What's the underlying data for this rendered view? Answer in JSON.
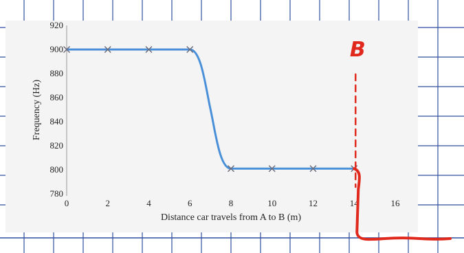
{
  "chart_data": {
    "type": "line",
    "xlabel": "Distance car travels from A to B (m)",
    "ylabel": "Frequency (Hz)",
    "xlim": [
      0,
      16
    ],
    "ylim": [
      780,
      920
    ],
    "x_ticks": [
      0,
      2,
      4,
      6,
      8,
      10,
      12,
      14,
      16
    ],
    "y_ticks": [
      780,
      800,
      820,
      840,
      860,
      880,
      900,
      920
    ],
    "grid": false,
    "series": [
      {
        "color": "#4a90d9",
        "marker": "x",
        "x": [
          0,
          2,
          4,
          6,
          8,
          10,
          12,
          14
        ],
        "y": [
          900,
          900,
          900,
          900,
          801,
          801,
          801,
          801
        ]
      }
    ],
    "annotation": {
      "label": "B",
      "x": 14,
      "color": "#e0291c"
    }
  },
  "colors": {
    "notebook_grid": "#2f4f9e",
    "plot_panel": "#f4f4f4",
    "line": "#4a90d9",
    "marker": "#6a6a7a",
    "handwriting": "#e0291c"
  }
}
